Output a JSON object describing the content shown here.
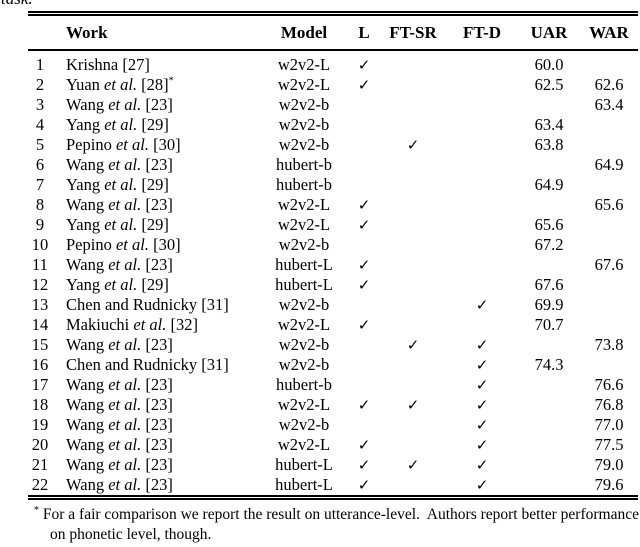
{
  "page": {
    "cropped_text_above": "task.",
    "colors": {
      "text": "#000000",
      "background": "#ffffff",
      "rule": "#000000"
    }
  },
  "table": {
    "columns": {
      "index": "",
      "work": "Work",
      "model": "Model",
      "l": "L",
      "ft_sr": "FT-SR",
      "ft_d": "FT-D",
      "uar": "UAR",
      "war": "WAR"
    },
    "icons": {
      "check": "✓"
    },
    "rows": [
      {
        "num": "1",
        "author": "Krishna",
        "etal": "",
        "ref": "[27]",
        "sup": "",
        "model": "w2v2-L",
        "l": true,
        "ft_sr": false,
        "ft_d": false,
        "uar": "60.0",
        "war": ""
      },
      {
        "num": "2",
        "author": "Yuan",
        "etal": "et al.",
        "ref": "[28]",
        "sup": "*",
        "model": "w2v2-L",
        "l": true,
        "ft_sr": false,
        "ft_d": false,
        "uar": "62.5",
        "war": "62.6"
      },
      {
        "num": "3",
        "author": "Wang",
        "etal": "et al.",
        "ref": "[23]",
        "sup": "",
        "model": "w2v2-b",
        "l": false,
        "ft_sr": false,
        "ft_d": false,
        "uar": "",
        "war": "63.4"
      },
      {
        "num": "4",
        "author": "Yang",
        "etal": "et al.",
        "ref": "[29]",
        "sup": "",
        "model": "w2v2-b",
        "l": false,
        "ft_sr": false,
        "ft_d": false,
        "uar": "63.4",
        "war": ""
      },
      {
        "num": "5",
        "author": "Pepino",
        "etal": "et al.",
        "ref": "[30]",
        "sup": "",
        "model": "w2v2-b",
        "l": false,
        "ft_sr": true,
        "ft_d": false,
        "uar": "63.8",
        "war": ""
      },
      {
        "num": "6",
        "author": "Wang",
        "etal": "et al.",
        "ref": "[23]",
        "sup": "",
        "model": "hubert-b",
        "l": false,
        "ft_sr": false,
        "ft_d": false,
        "uar": "",
        "war": "64.9"
      },
      {
        "num": "7",
        "author": "Yang",
        "etal": "et al.",
        "ref": "[29]",
        "sup": "",
        "model": "hubert-b",
        "l": false,
        "ft_sr": false,
        "ft_d": false,
        "uar": "64.9",
        "war": ""
      },
      {
        "num": "8",
        "author": "Wang",
        "etal": "et al.",
        "ref": "[23]",
        "sup": "",
        "model": "w2v2-L",
        "l": true,
        "ft_sr": false,
        "ft_d": false,
        "uar": "",
        "war": "65.6"
      },
      {
        "num": "9",
        "author": "Yang",
        "etal": "et al.",
        "ref": "[29]",
        "sup": "",
        "model": "w2v2-L",
        "l": true,
        "ft_sr": false,
        "ft_d": false,
        "uar": "65.6",
        "war": ""
      },
      {
        "num": "10",
        "author": "Pepino",
        "etal": "et al.",
        "ref": "[30]",
        "sup": "",
        "model": "w2v2-b",
        "l": false,
        "ft_sr": false,
        "ft_d": false,
        "uar": "67.2",
        "war": ""
      },
      {
        "num": "11",
        "author": "Wang",
        "etal": "et al.",
        "ref": "[23]",
        "sup": "",
        "model": "hubert-L",
        "l": true,
        "ft_sr": false,
        "ft_d": false,
        "uar": "",
        "war": "67.6"
      },
      {
        "num": "12",
        "author": "Yang",
        "etal": "et al.",
        "ref": "[29]",
        "sup": "",
        "model": "hubert-L",
        "l": true,
        "ft_sr": false,
        "ft_d": false,
        "uar": "67.6",
        "war": ""
      },
      {
        "num": "13",
        "author": "Chen and Rudnicky",
        "etal": "",
        "ref": "[31]",
        "sup": "",
        "model": "w2v2-b",
        "l": false,
        "ft_sr": false,
        "ft_d": true,
        "uar": "69.9",
        "war": ""
      },
      {
        "num": "14",
        "author": "Makiuchi",
        "etal": "et al.",
        "ref": "[32]",
        "sup": "",
        "model": "w2v2-L",
        "l": true,
        "ft_sr": false,
        "ft_d": false,
        "uar": "70.7",
        "war": ""
      },
      {
        "num": "15",
        "author": "Wang",
        "etal": "et al.",
        "ref": "[23]",
        "sup": "",
        "model": "w2v2-b",
        "l": false,
        "ft_sr": true,
        "ft_d": true,
        "uar": "",
        "war": "73.8"
      },
      {
        "num": "16",
        "author": "Chen and Rudnicky",
        "etal": "",
        "ref": "[31]",
        "sup": "",
        "model": "w2v2-b",
        "l": false,
        "ft_sr": false,
        "ft_d": true,
        "uar": "74.3",
        "war": ""
      },
      {
        "num": "17",
        "author": "Wang",
        "etal": "et al.",
        "ref": "[23]",
        "sup": "",
        "model": "hubert-b",
        "l": false,
        "ft_sr": false,
        "ft_d": true,
        "uar": "",
        "war": "76.6"
      },
      {
        "num": "18",
        "author": "Wang",
        "etal": "et al.",
        "ref": "[23]",
        "sup": "",
        "model": "w2v2-L",
        "l": true,
        "ft_sr": true,
        "ft_d": true,
        "uar": "",
        "war": "76.8"
      },
      {
        "num": "19",
        "author": "Wang",
        "etal": "et al.",
        "ref": "[23]",
        "sup": "",
        "model": "w2v2-b",
        "l": false,
        "ft_sr": false,
        "ft_d": true,
        "uar": "",
        "war": "77.0"
      },
      {
        "num": "20",
        "author": "Wang",
        "etal": "et al.",
        "ref": "[23]",
        "sup": "",
        "model": "w2v2-L",
        "l": true,
        "ft_sr": false,
        "ft_d": true,
        "uar": "",
        "war": "77.5"
      },
      {
        "num": "21",
        "author": "Wang",
        "etal": "et al.",
        "ref": "[23]",
        "sup": "",
        "model": "hubert-L",
        "l": true,
        "ft_sr": true,
        "ft_d": true,
        "uar": "",
        "war": "79.0"
      },
      {
        "num": "22",
        "author": "Wang",
        "etal": "et al.",
        "ref": "[23]",
        "sup": "",
        "model": "hubert-L",
        "l": true,
        "ft_sr": false,
        "ft_d": true,
        "uar": "",
        "war": "79.6"
      }
    ],
    "footnote": {
      "marker": "*",
      "text": "For a fair comparison we report the result on utterance-level.  Authors report better performance on phonetic level, though."
    }
  }
}
